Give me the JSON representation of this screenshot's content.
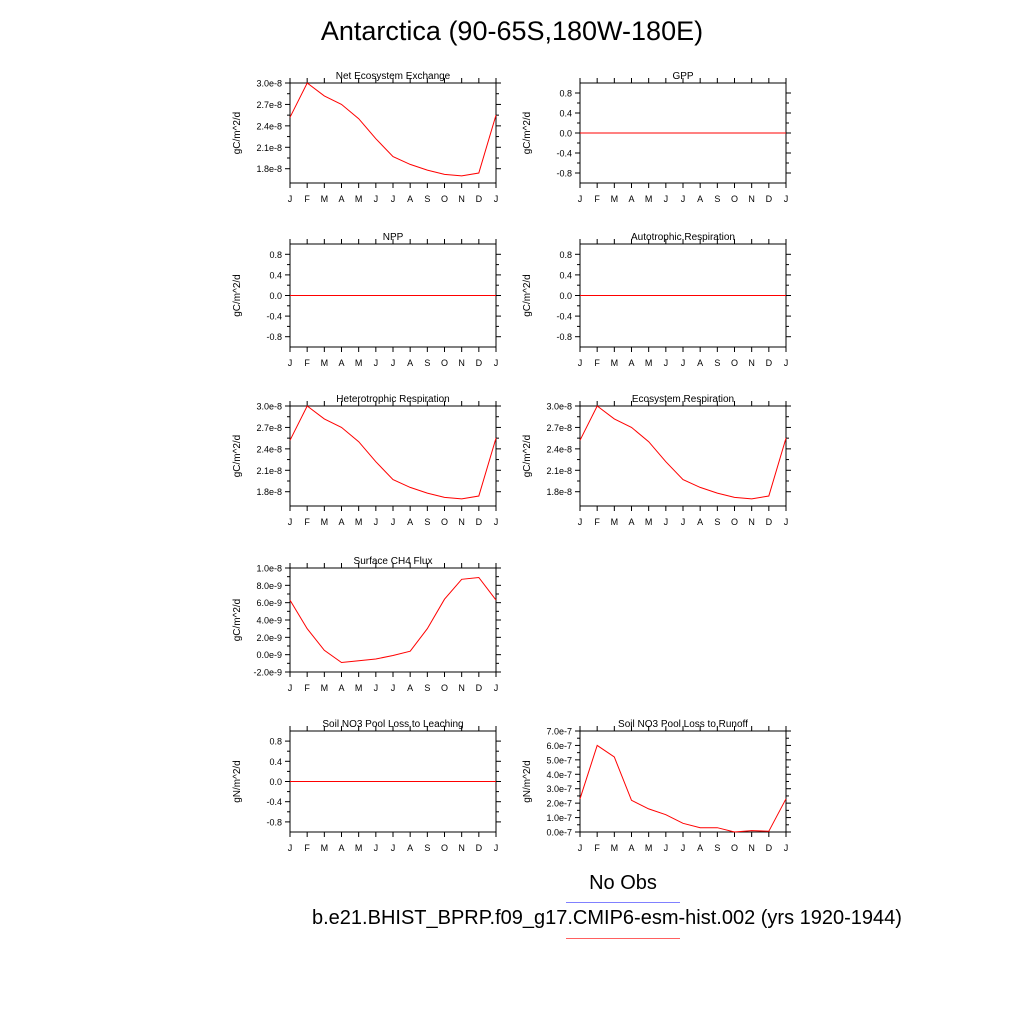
{
  "title": "Antarctica (90-65S,180W-180E)",
  "legend": {
    "obs_label": "No Obs",
    "case_label": "b.e21.BHIST_BPRP.f09_g17.CMIP6-esm-hist.002 (yrs 1920-1944)",
    "obs_color": "#8080ff",
    "case_color": "#ff0000"
  },
  "chart_data": [
    {
      "type": "line",
      "title": "Net Ecosystem Exchange",
      "ylabel": "gC/m^2/d",
      "categories": [
        "J",
        "F",
        "M",
        "A",
        "M",
        "J",
        "J",
        "A",
        "S",
        "O",
        "N",
        "D",
        "J"
      ],
      "ylim": [
        1.6e-08,
        3e-08
      ],
      "yticks": [
        1.8e-08,
        2.1e-08,
        2.4e-08,
        2.7e-08,
        3e-08
      ],
      "ytick_labels": [
        "1.8e-8",
        "2.1e-8",
        "2.4e-8",
        "2.7e-8",
        "3.0e-8"
      ],
      "values": [
        2.52e-08,
        3e-08,
        2.82e-08,
        2.7e-08,
        2.5e-08,
        2.22e-08,
        1.97e-08,
        1.86e-08,
        1.78e-08,
        1.72e-08,
        1.7e-08,
        1.74e-08,
        2.55e-08
      ]
    },
    {
      "type": "line",
      "title": "GPP",
      "ylabel": "gC/m^2/d",
      "categories": [
        "J",
        "F",
        "M",
        "A",
        "M",
        "J",
        "J",
        "A",
        "S",
        "O",
        "N",
        "D",
        "J"
      ],
      "ylim": [
        -1.0,
        1.0
      ],
      "yticks": [
        -0.8,
        -0.4,
        0.0,
        0.4,
        0.8
      ],
      "ytick_labels": [
        "-0.8",
        "-0.4",
        "0.0",
        "0.4",
        "0.8"
      ],
      "values": [
        0,
        0,
        0,
        0,
        0,
        0,
        0,
        0,
        0,
        0,
        0,
        0,
        0
      ]
    },
    {
      "type": "line",
      "title": "NPP",
      "ylabel": "gC/m^2/d",
      "categories": [
        "J",
        "F",
        "M",
        "A",
        "M",
        "J",
        "J",
        "A",
        "S",
        "O",
        "N",
        "D",
        "J"
      ],
      "ylim": [
        -1.0,
        1.0
      ],
      "yticks": [
        -0.8,
        -0.4,
        0.0,
        0.4,
        0.8
      ],
      "ytick_labels": [
        "-0.8",
        "-0.4",
        "0.0",
        "0.4",
        "0.8"
      ],
      "values": [
        0,
        0,
        0,
        0,
        0,
        0,
        0,
        0,
        0,
        0,
        0,
        0,
        0
      ]
    },
    {
      "type": "line",
      "title": "Autotrophic Respiration",
      "ylabel": "gC/m^2/d",
      "categories": [
        "J",
        "F",
        "M",
        "A",
        "M",
        "J",
        "J",
        "A",
        "S",
        "O",
        "N",
        "D",
        "J"
      ],
      "ylim": [
        -1.0,
        1.0
      ],
      "yticks": [
        -0.8,
        -0.4,
        0.0,
        0.4,
        0.8
      ],
      "ytick_labels": [
        "-0.8",
        "-0.4",
        "0.0",
        "0.4",
        "0.8"
      ],
      "values": [
        0,
        0,
        0,
        0,
        0,
        0,
        0,
        0,
        0,
        0,
        0,
        0,
        0
      ]
    },
    {
      "type": "line",
      "title": "Heterotrophic Respiration",
      "ylabel": "gC/m^2/d",
      "categories": [
        "J",
        "F",
        "M",
        "A",
        "M",
        "J",
        "J",
        "A",
        "S",
        "O",
        "N",
        "D",
        "J"
      ],
      "ylim": [
        1.6e-08,
        3e-08
      ],
      "yticks": [
        1.8e-08,
        2.1e-08,
        2.4e-08,
        2.7e-08,
        3e-08
      ],
      "ytick_labels": [
        "1.8e-8",
        "2.1e-8",
        "2.4e-8",
        "2.7e-8",
        "3.0e-8"
      ],
      "values": [
        2.52e-08,
        3e-08,
        2.82e-08,
        2.7e-08,
        2.5e-08,
        2.22e-08,
        1.97e-08,
        1.86e-08,
        1.78e-08,
        1.72e-08,
        1.7e-08,
        1.74e-08,
        2.55e-08
      ]
    },
    {
      "type": "line",
      "title": "Ecosystem Respiration",
      "ylabel": "gC/m^2/d",
      "categories": [
        "J",
        "F",
        "M",
        "A",
        "M",
        "J",
        "J",
        "A",
        "S",
        "O",
        "N",
        "D",
        "J"
      ],
      "ylim": [
        1.6e-08,
        3e-08
      ],
      "yticks": [
        1.8e-08,
        2.1e-08,
        2.4e-08,
        2.7e-08,
        3e-08
      ],
      "ytick_labels": [
        "1.8e-8",
        "2.1e-8",
        "2.4e-8",
        "2.7e-8",
        "3.0e-8"
      ],
      "values": [
        2.52e-08,
        3e-08,
        2.82e-08,
        2.7e-08,
        2.5e-08,
        2.22e-08,
        1.97e-08,
        1.86e-08,
        1.78e-08,
        1.72e-08,
        1.7e-08,
        1.74e-08,
        2.55e-08
      ]
    },
    {
      "type": "line",
      "title": "Surface CH4 Flux",
      "ylabel": "gC/m^2/d",
      "categories": [
        "J",
        "F",
        "M",
        "A",
        "M",
        "J",
        "J",
        "A",
        "S",
        "O",
        "N",
        "D",
        "J"
      ],
      "ylim": [
        -2e-09,
        1e-08
      ],
      "yticks": [
        -2e-09,
        0.0,
        2e-09,
        4e-09,
        6e-09,
        8e-09,
        1e-08
      ],
      "ytick_labels": [
        "-2.0e-9",
        "0.0e-9",
        "2.0e-9",
        "4.0e-9",
        "6.0e-9",
        "8.0e-9",
        "1.0e-8"
      ],
      "values": [
        6.3e-09,
        3e-09,
        5e-10,
        -9e-10,
        -7e-10,
        -5e-10,
        -1e-10,
        4e-10,
        3e-09,
        6.4e-09,
        8.7e-09,
        8.9e-09,
        6.3e-09
      ]
    },
    {
      "type": "line",
      "title": "Soil NO3 Pool Loss to Leaching",
      "ylabel": "gN/m^2/d",
      "categories": [
        "J",
        "F",
        "M",
        "A",
        "M",
        "J",
        "J",
        "A",
        "S",
        "O",
        "N",
        "D",
        "J"
      ],
      "ylim": [
        -1.0,
        1.0
      ],
      "yticks": [
        -0.8,
        -0.4,
        0.0,
        0.4,
        0.8
      ],
      "ytick_labels": [
        "-0.8",
        "-0.4",
        "0.0",
        "0.4",
        "0.8"
      ],
      "values": [
        0,
        0,
        0,
        0,
        0,
        0,
        0,
        0,
        0,
        0,
        0,
        0,
        0
      ]
    },
    {
      "type": "line",
      "title": "Soil NO3 Pool Loss to Runoff",
      "ylabel": "gN/m^2/d",
      "categories": [
        "J",
        "F",
        "M",
        "A",
        "M",
        "J",
        "J",
        "A",
        "S",
        "O",
        "N",
        "D",
        "J"
      ],
      "ylim": [
        0.0,
        7e-07
      ],
      "yticks": [
        0.0,
        1e-07,
        2e-07,
        3e-07,
        4e-07,
        5e-07,
        6e-07,
        7e-07
      ],
      "ytick_labels": [
        "0.0e-7",
        "1.0e-7",
        "2.0e-7",
        "3.0e-7",
        "4.0e-7",
        "5.0e-7",
        "6.0e-7",
        "7.0e-7"
      ],
      "values": [
        2.3e-07,
        6e-07,
        5.2e-07,
        2.2e-07,
        1.6e-07,
        1.2e-07,
        6e-08,
        3e-08,
        3e-08,
        0.0,
        1e-08,
        5e-09,
        2.3e-07
      ]
    }
  ]
}
